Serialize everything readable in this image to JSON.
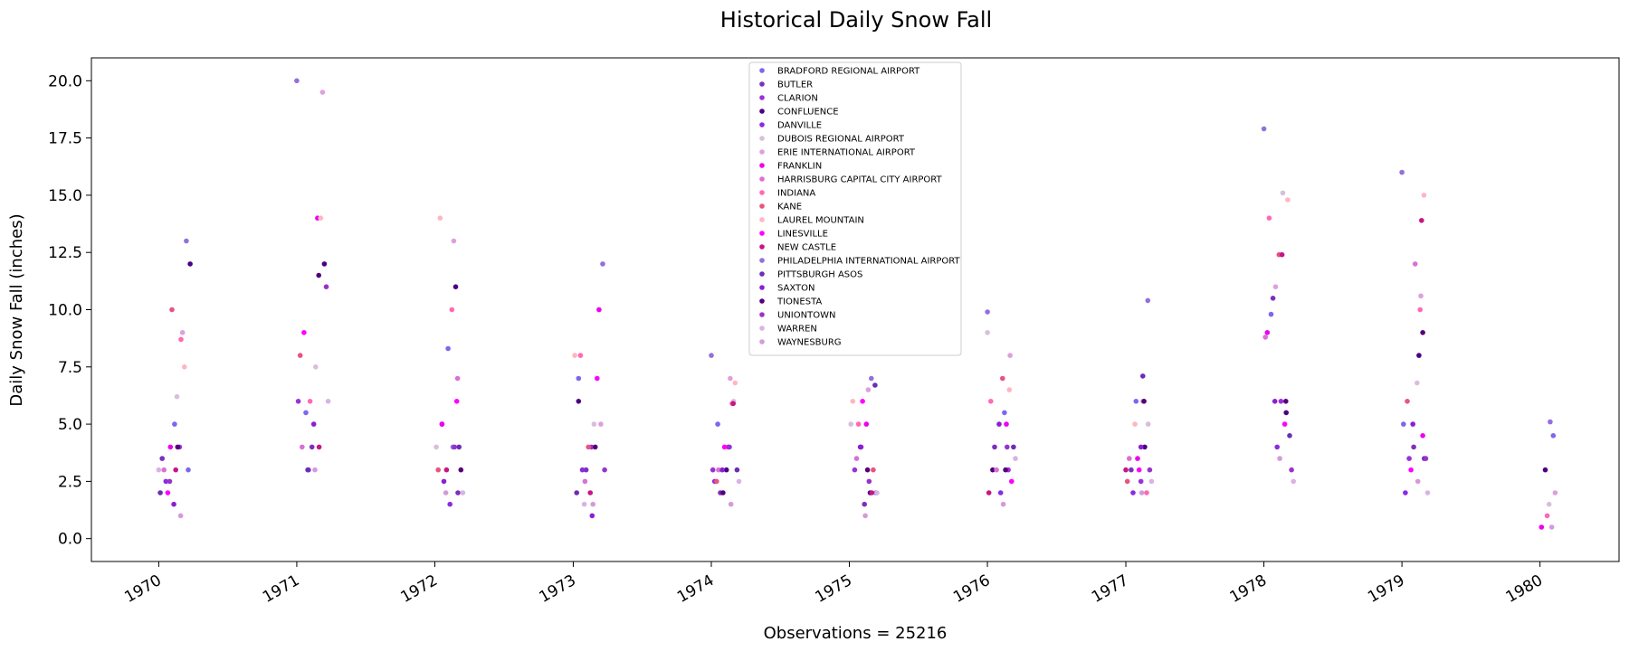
{
  "chart_data": {
    "type": "scatter",
    "title": "Historical Daily Snow Fall",
    "xlabel": "Observations = 25216",
    "ylabel": "Daily Snow Fall (inches)",
    "x_ticks": [
      "1970",
      "1971",
      "1972",
      "1973",
      "1974",
      "1975",
      "1976",
      "1977",
      "1978",
      "1979",
      "1980"
    ],
    "y_ticks": [
      "0.0",
      "2.5",
      "5.0",
      "7.5",
      "10.0",
      "12.5",
      "15.0",
      "17.5",
      "20.0"
    ],
    "xlim": [
      "1969-07-07",
      "1980-07-28"
    ],
    "ylim": [
      -1,
      21
    ],
    "grid": false,
    "legend_position": "top-center",
    "series": [
      {
        "name": "BRADFORD REGIONAL AIRPORT",
        "color": "#7b68ee",
        "points": [
          [
            "1970-02-12",
            5.0
          ],
          [
            "1970-03-20",
            3.0
          ],
          [
            "1971-01-25",
            5.5
          ],
          [
            "1972-02-05",
            8.3
          ],
          [
            "1973-01-15",
            7.0
          ],
          [
            "1974-01-18",
            5.0
          ],
          [
            "1975-03-12",
            2.0
          ],
          [
            "1976-02-15",
            5.5
          ],
          [
            "1977-01-28",
            6.0
          ],
          [
            "1978-01-20",
            9.8
          ],
          [
            "1979-01-05",
            5.0
          ],
          [
            "1980-02-05",
            4.5
          ]
        ]
      },
      {
        "name": "BUTLER",
        "color": "#7b2fbe",
        "points": [
          [
            "1970-01-10",
            3.5
          ],
          [
            "1971-02-10",
            4.0
          ],
          [
            "1972-03-02",
            2.0
          ],
          [
            "1973-02-04",
            3.0
          ],
          [
            "1974-01-25",
            2.0
          ],
          [
            "1975-02-10",
            1.5
          ],
          [
            "1976-01-20",
            4.0
          ],
          [
            "1977-01-15",
            3.0
          ],
          [
            "1978-01-25",
            10.5
          ],
          [
            "1979-02-01",
            4.0
          ]
        ]
      },
      {
        "name": "CLARION",
        "color": "#9b30d9",
        "points": [
          [
            "1970-02-25",
            4.0
          ],
          [
            "1971-01-05",
            6.0
          ],
          [
            "1972-01-20",
            5.0
          ],
          [
            "1973-02-18",
            4.0
          ],
          [
            "1974-01-05",
            3.0
          ],
          [
            "1975-01-15",
            3.0
          ],
          [
            "1976-02-25",
            3.0
          ],
          [
            "1977-02-10",
            2.5
          ],
          [
            "1978-02-15",
            6.0
          ],
          [
            "1979-01-20",
            3.5
          ]
        ]
      },
      {
        "name": "CONFLUENCE",
        "color": "#4b0082",
        "points": [
          [
            "1970-03-25",
            12.0
          ],
          [
            "1971-03-15",
            12.0
          ],
          [
            "1972-02-25",
            11.0
          ],
          [
            "1973-01-15",
            6.0
          ],
          [
            "1974-02-10",
            3.0
          ],
          [
            "1975-02-25",
            2.0
          ],
          [
            "1976-01-15",
            3.0
          ],
          [
            "1977-02-20",
            4.0
          ],
          [
            "1978-03-01",
            5.5
          ],
          [
            "1979-02-15",
            8.0
          ],
          [
            "1980-01-15",
            3.0
          ]
        ]
      },
      {
        "name": "DANVILLE",
        "color": "#8a2be2",
        "points": [
          [
            "1970-01-20",
            2.5
          ],
          [
            "1971-02-01",
            3.0
          ],
          [
            "1972-02-10",
            1.5
          ],
          [
            "1973-01-25",
            3.0
          ],
          [
            "1974-01-10",
            2.5
          ],
          [
            "1975-02-01",
            4.0
          ],
          [
            "1976-02-05",
            2.0
          ],
          [
            "1977-01-20",
            2.0
          ],
          [
            "1978-02-05",
            4.0
          ],
          [
            "1979-01-10",
            2.0
          ]
        ]
      },
      {
        "name": "DUBOIS REGIONAL AIRPORT",
        "color": "#d8bfd8",
        "points": [
          [
            "1970-02-18",
            6.2
          ],
          [
            "1971-02-20",
            7.5
          ],
          [
            "1972-01-05",
            4.0
          ],
          [
            "1973-02-25",
            5.0
          ],
          [
            "1974-03-01",
            6.0
          ],
          [
            "1975-01-05",
            5.0
          ],
          [
            "1976-01-01",
            9.0
          ],
          [
            "1977-03-01",
            5.0
          ],
          [
            "1978-02-20",
            15.1
          ],
          [
            "1979-02-10",
            6.8
          ],
          [
            "1980-01-25",
            1.5
          ]
        ]
      },
      {
        "name": "ERIE INTERNATIONAL AIRPORT",
        "color": "#dda0dd",
        "points": [
          [
            "1970-03-05",
            9.0
          ],
          [
            "1971-03-10",
            19.5
          ],
          [
            "1972-02-20",
            13.0
          ],
          [
            "1973-03-15",
            5.0
          ],
          [
            "1974-02-20",
            7.0
          ],
          [
            "1975-02-20",
            6.5
          ],
          [
            "1976-03-01",
            8.0
          ],
          [
            "1977-02-15",
            6.0
          ],
          [
            "1978-02-01",
            11.0
          ],
          [
            "1979-02-20",
            10.6
          ],
          [
            "1980-02-10",
            2.0
          ]
        ]
      },
      {
        "name": "FRANKLIN",
        "color": "#ee00ee",
        "points": [
          [
            "1970-02-01",
            4.0
          ],
          [
            "1971-02-25",
            14.0
          ],
          [
            "1972-01-20",
            5.0
          ],
          [
            "1973-03-10",
            10.0
          ],
          [
            "1974-02-15",
            4.0
          ],
          [
            "1975-02-15",
            5.0
          ],
          [
            "1976-02-20",
            5.0
          ],
          [
            "1977-02-01",
            3.5
          ],
          [
            "1978-01-10",
            9.0
          ],
          [
            "1979-02-25",
            4.5
          ],
          [
            "1980-01-05",
            0.5
          ]
        ]
      },
      {
        "name": "HARRISBURG CAPITAL CITY AIRPORT",
        "color": "#da70d6",
        "points": [
          [
            "1970-01-15",
            3.0
          ],
          [
            "1971-01-15",
            4.0
          ],
          [
            "1972-03-01",
            7.0
          ],
          [
            "1973-02-01",
            2.5
          ],
          [
            "1974-01-20",
            3.0
          ],
          [
            "1975-01-20",
            3.5
          ],
          [
            "1976-01-25",
            3.0
          ],
          [
            "1977-01-10",
            3.5
          ],
          [
            "1978-01-05",
            8.8
          ],
          [
            "1979-02-05",
            12.0
          ]
        ]
      },
      {
        "name": "INDIANA",
        "color": "#ff69b4",
        "points": [
          [
            "1970-03-01",
            8.7
          ],
          [
            "1971-02-05",
            6.0
          ],
          [
            "1972-02-15",
            10.0
          ],
          [
            "1973-01-20",
            8.0
          ],
          [
            "1974-02-25",
            5.9
          ],
          [
            "1975-01-25",
            5.0
          ],
          [
            "1976-01-10",
            6.0
          ],
          [
            "1977-02-25",
            2.0
          ],
          [
            "1978-01-15",
            14.0
          ],
          [
            "1979-02-18",
            10.0
          ],
          [
            "1980-01-20",
            1.0
          ]
        ]
      },
      {
        "name": "KANE",
        "color": "#e75480",
        "points": [
          [
            "1970-02-05",
            10.0
          ],
          [
            "1971-01-10",
            8.0
          ],
          [
            "1972-01-10",
            3.0
          ],
          [
            "1973-02-10",
            4.0
          ],
          [
            "1974-01-15",
            2.5
          ],
          [
            "1975-03-05",
            3.0
          ],
          [
            "1976-02-10",
            7.0
          ],
          [
            "1977-01-05",
            2.5
          ],
          [
            "1978-02-10",
            12.4
          ],
          [
            "1979-01-15",
            6.0
          ]
        ]
      },
      {
        "name": "LAUREL MOUNTAIN",
        "color": "#ffb6c1",
        "points": [
          [
            "1970-03-10",
            7.5
          ],
          [
            "1971-03-05",
            14.0
          ],
          [
            "1972-01-15",
            14.0
          ],
          [
            "1973-01-05",
            8.0
          ],
          [
            "1974-03-05",
            6.8
          ],
          [
            "1975-01-10",
            6.0
          ],
          [
            "1976-02-28",
            6.5
          ],
          [
            "1977-01-25",
            5.0
          ],
          [
            "1978-03-05",
            14.8
          ],
          [
            "1979-02-28",
            15.0
          ]
        ]
      },
      {
        "name": "LINESVILLE",
        "color": "#ff00ff",
        "points": [
          [
            "1970-01-25",
            2.0
          ],
          [
            "1971-01-20",
            9.0
          ],
          [
            "1972-02-28",
            6.0
          ],
          [
            "1973-03-05",
            7.0
          ],
          [
            "1974-02-05",
            4.0
          ],
          [
            "1975-02-05",
            6.0
          ],
          [
            "1976-03-05",
            2.5
          ],
          [
            "1977-02-05",
            3.0
          ],
          [
            "1978-02-25",
            5.0
          ],
          [
            "1979-01-25",
            3.0
          ]
        ]
      },
      {
        "name": "NEW CASTLE",
        "color": "#c71585",
        "points": [
          [
            "1970-02-15",
            3.0
          ],
          [
            "1971-03-01",
            4.0
          ],
          [
            "1972-02-01",
            3.0
          ],
          [
            "1973-02-15",
            2.0
          ],
          [
            "1974-02-28",
            5.9
          ],
          [
            "1975-03-01",
            2.0
          ],
          [
            "1976-01-05",
            2.0
          ],
          [
            "1977-01-01",
            3.0
          ],
          [
            "1978-02-18",
            12.4
          ],
          [
            "1979-02-22",
            13.9
          ]
        ]
      },
      {
        "name": "PHILADELPHIA INTERNATIONAL AIRPORT",
        "color": "#9370db",
        "points": [
          [
            "1970-03-15",
            13.0
          ],
          [
            "1971-01-01",
            20.0
          ],
          [
            "1972-02-18",
            4.0
          ],
          [
            "1973-03-20",
            12.0
          ],
          [
            "1974-01-01",
            8.0
          ],
          [
            "1975-02-28",
            7.0
          ],
          [
            "1976-01-01",
            9.9
          ],
          [
            "1977-02-28",
            10.4
          ],
          [
            "1978-01-01",
            17.9
          ],
          [
            "1979-01-01",
            16.0
          ],
          [
            "1980-01-28",
            5.1
          ]
        ]
      },
      {
        "name": "PITTSBURGH ASOS",
        "color": "#6a2eb5",
        "points": [
          [
            "1970-01-05",
            2.0
          ],
          [
            "1971-01-30",
            3.0
          ],
          [
            "1972-03-05",
            4.0
          ],
          [
            "1973-01-10",
            2.0
          ],
          [
            "1974-03-10",
            3.0
          ],
          [
            "1975-03-10",
            6.7
          ],
          [
            "1976-03-10",
            4.0
          ],
          [
            "1977-02-15",
            7.1
          ],
          [
            "1978-03-10",
            4.5
          ],
          [
            "1979-03-01",
            3.5
          ]
        ]
      },
      {
        "name": "SAXTON",
        "color": "#8b1fd1",
        "points": [
          [
            "1970-02-10",
            1.5
          ],
          [
            "1971-02-15",
            5.0
          ],
          [
            "1972-01-25",
            2.5
          ],
          [
            "1973-02-20",
            1.0
          ],
          [
            "1974-01-30",
            3.0
          ],
          [
            "1975-01-30",
            4.0
          ],
          [
            "1976-02-01",
            5.0
          ],
          [
            "1977-02-10",
            4.0
          ],
          [
            "1978-01-30",
            6.0
          ],
          [
            "1979-01-30",
            5.0
          ]
        ]
      },
      {
        "name": "TIONESTA",
        "color": "#550077",
        "points": [
          [
            "1970-02-20",
            4.0
          ],
          [
            "1971-02-28",
            11.5
          ],
          [
            "1972-03-10",
            3.0
          ],
          [
            "1973-02-28",
            4.0
          ],
          [
            "1974-02-01",
            2.0
          ],
          [
            "1975-02-18",
            3.0
          ],
          [
            "1976-02-18",
            3.0
          ],
          [
            "1977-02-18",
            6.0
          ],
          [
            "1978-02-28",
            6.0
          ],
          [
            "1979-02-25",
            9.0
          ]
        ]
      },
      {
        "name": "UNIONTOWN",
        "color": "#9932cc",
        "points": [
          [
            "1970-01-30",
            2.5
          ],
          [
            "1971-03-20",
            11.0
          ],
          [
            "1972-02-22",
            4.0
          ],
          [
            "1973-03-25",
            3.0
          ],
          [
            "1974-02-18",
            4.0
          ],
          [
            "1975-02-22",
            2.5
          ],
          [
            "1976-02-22",
            4.0
          ],
          [
            "1977-03-05",
            3.0
          ],
          [
            "1978-03-15",
            3.0
          ],
          [
            "1979-03-05",
            3.5
          ]
        ]
      },
      {
        "name": "WARREN",
        "color": "#d8b4e2",
        "points": [
          [
            "1970-01-01",
            3.0
          ],
          [
            "1971-03-25",
            6.0
          ],
          [
            "1972-03-15",
            2.0
          ],
          [
            "1973-01-30",
            1.5
          ],
          [
            "1974-03-15",
            2.5
          ],
          [
            "1975-03-15",
            2.0
          ],
          [
            "1976-03-15",
            3.5
          ],
          [
            "1977-03-10",
            2.5
          ],
          [
            "1978-03-20",
            2.5
          ],
          [
            "1979-03-10",
            2.0
          ]
        ]
      },
      {
        "name": "WAYNESBURG",
        "color": "#d49bd8",
        "points": [
          [
            "1970-02-28",
            1.0
          ],
          [
            "1971-02-18",
            3.0
          ],
          [
            "1972-01-30",
            2.0
          ],
          [
            "1973-02-22",
            1.5
          ],
          [
            "1974-02-22",
            1.5
          ],
          [
            "1975-02-12",
            1.0
          ],
          [
            "1976-02-12",
            1.5
          ],
          [
            "1977-02-12",
            2.0
          ],
          [
            "1978-02-12",
            3.5
          ],
          [
            "1979-02-12",
            2.5
          ],
          [
            "1980-02-01",
            0.5
          ]
        ]
      }
    ]
  }
}
